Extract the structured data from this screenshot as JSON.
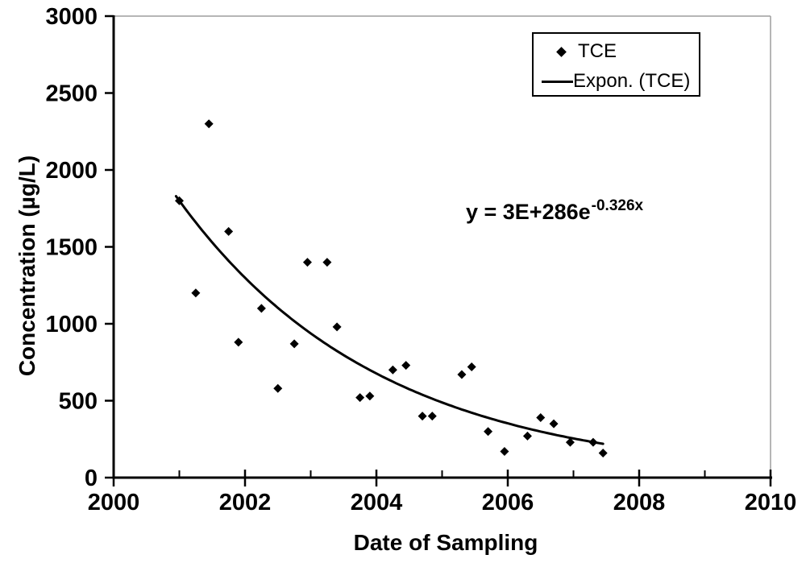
{
  "chart_data": {
    "type": "scatter",
    "title": "",
    "xlabel": "Date of Sampling",
    "ylabel": "Concentration (µg/L)",
    "xlim": [
      2000,
      2010
    ],
    "ylim": [
      0,
      3000
    ],
    "x_major_ticks": [
      2000,
      2002,
      2004,
      2006,
      2008,
      2010
    ],
    "x_minor_tick_step": 1,
    "y_tick_step": 500,
    "grid": "off",
    "legend": {
      "position": "top-right",
      "entries": [
        "TCE",
        "Expon. (TCE)"
      ]
    },
    "annotation": {
      "equation_base": "y = 3E+286e",
      "equation_exponent": "-0.326x"
    },
    "series": [
      {
        "name": "TCE",
        "type": "scatter",
        "marker": "diamond",
        "color": "#000000",
        "points": [
          [
            2001.0,
            1800
          ],
          [
            2001.25,
            1200
          ],
          [
            2001.45,
            2300
          ],
          [
            2001.75,
            1600
          ],
          [
            2001.9,
            880
          ],
          [
            2002.25,
            1100
          ],
          [
            2002.5,
            580
          ],
          [
            2002.75,
            870
          ],
          [
            2002.95,
            1400
          ],
          [
            2003.25,
            1400
          ],
          [
            2003.4,
            980
          ],
          [
            2003.75,
            520
          ],
          [
            2003.9,
            530
          ],
          [
            2004.25,
            700
          ],
          [
            2004.45,
            730
          ],
          [
            2004.7,
            400
          ],
          [
            2004.85,
            400
          ],
          [
            2005.3,
            670
          ],
          [
            2005.45,
            720
          ],
          [
            2005.7,
            300
          ],
          [
            2005.95,
            170
          ],
          [
            2006.3,
            270
          ],
          [
            2006.5,
            390
          ],
          [
            2006.7,
            350
          ],
          [
            2006.95,
            230
          ],
          [
            2007.3,
            230
          ],
          [
            2007.45,
            160
          ]
        ]
      },
      {
        "name": "Expon. (TCE)",
        "type": "exponential_trendline",
        "color": "#000000",
        "decay_rate": 0.326,
        "value_at_2001": 1800,
        "x_start": 2000.95,
        "x_end": 2007.45
      }
    ],
    "colors": {
      "axis": "#000000",
      "frame": "#9e9e9e",
      "background": "#ffffff",
      "text": "#000000"
    }
  }
}
